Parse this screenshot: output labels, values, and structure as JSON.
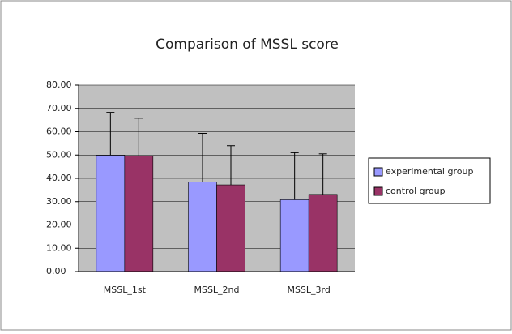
{
  "chart_data": {
    "type": "bar",
    "title": "Comparison of MSSL score",
    "categories": [
      "MSSL_1st",
      "MSSL_2nd",
      "MSSL_3rd"
    ],
    "series": [
      {
        "name": "experimental group",
        "color": "#9999ff",
        "values": [
          49.9,
          38.5,
          30.8
        ],
        "errors": [
          18.4,
          20.8,
          20.2
        ]
      },
      {
        "name": "control group",
        "color": "#993366",
        "values": [
          49.5,
          37.2,
          33.1
        ],
        "errors": [
          16.3,
          16.8,
          17.4
        ]
      }
    ],
    "ylim": [
      0,
      80
    ],
    "yticks": [
      {
        "value": 0,
        "label": "0.00"
      },
      {
        "value": 10,
        "label": "10.00"
      },
      {
        "value": 20,
        "label": "20.00"
      },
      {
        "value": 30,
        "label": "30.00"
      },
      {
        "value": 40,
        "label": "40.00"
      },
      {
        "value": 50,
        "label": "50.00"
      },
      {
        "value": 60,
        "label": "60.00"
      },
      {
        "value": 70,
        "label": "70.00"
      },
      {
        "value": 80,
        "label": "80.00"
      }
    ],
    "grid": true,
    "legend": "right"
  }
}
